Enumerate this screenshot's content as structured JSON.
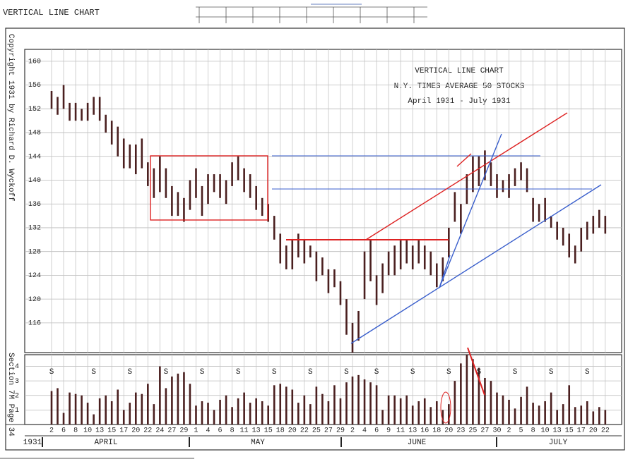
{
  "header": "VERTICAL LINE CHART",
  "chart_data": {
    "type": "range",
    "title": "VERTICAL LINE CHART",
    "subtitle": "N.Y. TIMES AVERAGE 50 STOCKS",
    "period": "April 1931 - July 1931",
    "copyright": "Copyright 1931 by Richard D. Wyckoff",
    "section": "Section 7M Page 34",
    "year": "1931",
    "months": [
      "APRIL",
      "MAY",
      "JUNE",
      "JULY"
    ],
    "color": "#4a1f1f",
    "grid": true,
    "categories": [
      "2",
      null,
      "6",
      null,
      "8",
      null,
      "10",
      null,
      "13",
      null,
      "15",
      null,
      "17",
      null,
      "20",
      null,
      "22",
      null,
      "24",
      null,
      "27",
      null,
      "29",
      null,
      "1",
      null,
      "4",
      null,
      "6",
      null,
      "8",
      null,
      "11",
      null,
      "13",
      null,
      "15",
      null,
      "18",
      null,
      "20",
      null,
      "22",
      null,
      "25",
      null,
      "27",
      null,
      "29",
      null,
      "2",
      null,
      "4",
      null,
      "6",
      null,
      "9",
      null,
      "11",
      null,
      "13",
      null,
      "16",
      null,
      "18",
      null,
      "20",
      null,
      "23",
      null,
      "25",
      null,
      "27",
      null,
      "30",
      null,
      "2",
      null,
      "5",
      null,
      "8",
      null,
      "10",
      null,
      "13",
      null,
      "15",
      null,
      "17",
      null,
      "20",
      null,
      "22"
    ],
    "high": [
      155,
      154,
      156,
      153,
      153,
      152,
      153,
      154,
      154,
      151,
      150,
      149,
      147,
      146,
      146,
      147,
      143,
      142,
      144,
      142,
      139,
      138,
      137,
      140,
      142,
      139,
      141,
      141,
      141,
      140,
      143,
      144,
      142,
      141,
      139,
      137,
      136,
      134,
      131,
      129,
      130,
      131,
      130,
      129,
      128,
      127,
      125,
      125,
      123,
      120,
      116,
      118,
      128,
      130,
      124,
      126,
      128,
      129,
      130,
      130,
      129,
      130,
      129,
      128,
      126,
      127,
      132,
      138,
      136,
      141,
      144,
      144,
      145,
      143,
      141,
      140,
      141,
      142,
      143,
      142,
      137,
      136,
      137,
      134,
      133,
      132,
      131,
      129,
      132,
      133,
      134,
      135,
      134
    ],
    "low": [
      152,
      151,
      152,
      150,
      150,
      150,
      150,
      151,
      150,
      148,
      146,
      144,
      142,
      142,
      141,
      142,
      139,
      137,
      138,
      137,
      134,
      134,
      133,
      135,
      137,
      134,
      136,
      138,
      137,
      136,
      139,
      140,
      138,
      137,
      135,
      134,
      133,
      130,
      126,
      125,
      125,
      127,
      126,
      127,
      123,
      124,
      121,
      122,
      119,
      114,
      111,
      113,
      120,
      123,
      119,
      121,
      124,
      124,
      125,
      126,
      125,
      126,
      125,
      124,
      122,
      123,
      127,
      133,
      131,
      136,
      138,
      139,
      140,
      139,
      137,
      138,
      137,
      139,
      140,
      138,
      133,
      133,
      133,
      132,
      130,
      129,
      127,
      126,
      128,
      130,
      131,
      132,
      131
    ],
    "ylim": [
      111,
      162
    ],
    "yticks": [
      116,
      120,
      124,
      128,
      132,
      136,
      140,
      144,
      148,
      152,
      156,
      160
    ],
    "volume": {
      "values": [
        2.3,
        2.5,
        0.8,
        2.2,
        2.1,
        2.0,
        1.5,
        0.7,
        1.8,
        2.0,
        1.6,
        2.4,
        1.0,
        1.5,
        2.2,
        2.1,
        2.8,
        1.4,
        4.0,
        2.5,
        3.3,
        3.5,
        3.6,
        2.8,
        1.3,
        1.6,
        1.5,
        1.0,
        1.7,
        2.0,
        1.2,
        1.8,
        2.2,
        1.5,
        1.8,
        1.6,
        1.3,
        2.7,
        2.8,
        2.6,
        2.4,
        1.5,
        2.0,
        1.4,
        2.6,
        2.1,
        1.6,
        2.7,
        1.8,
        2.9,
        3.3,
        3.4,
        3.1,
        2.9,
        2.7,
        1.0,
        2.0,
        2.0,
        1.8,
        2.0,
        1.3,
        1.6,
        1.8,
        1.2,
        1.6,
        1.0,
        1.4,
        3.0,
        4.2,
        4.8,
        4.5,
        3.9,
        3.2,
        3.0,
        2.2,
        2.0,
        1.7,
        1.1,
        1.9,
        2.6,
        1.5,
        1.3,
        1.6,
        2.2,
        1.0,
        1.4,
        2.7,
        1.2,
        1.3,
        1.6,
        0.9,
        1.2,
        1.0
      ],
      "ylim": [
        0,
        4.8
      ],
      "yticks": [
        1,
        2,
        3,
        4
      ]
    },
    "day_marks": [
      "S",
      null,
      null,
      null,
      null,
      null,
      null,
      "S",
      null,
      null,
      null,
      null,
      null,
      "S",
      null,
      null,
      null,
      null,
      null,
      "S",
      null,
      null,
      null,
      null,
      null,
      "S",
      null,
      null,
      null,
      null,
      null,
      "S",
      null,
      null,
      null,
      null,
      null,
      "S",
      null,
      null,
      null,
      null,
      null,
      "S",
      null,
      null,
      null,
      null,
      null,
      "S",
      null,
      null,
      null,
      null,
      "S",
      null,
      null,
      null,
      null,
      null,
      "S",
      null,
      null,
      null,
      null,
      null,
      "S",
      null,
      null,
      null,
      null,
      "S",
      null,
      null,
      null,
      null,
      null,
      "S",
      null,
      null,
      null,
      null,
      null,
      "S",
      null,
      null,
      null,
      null,
      null,
      "S",
      null,
      null,
      null
    ]
  }
}
